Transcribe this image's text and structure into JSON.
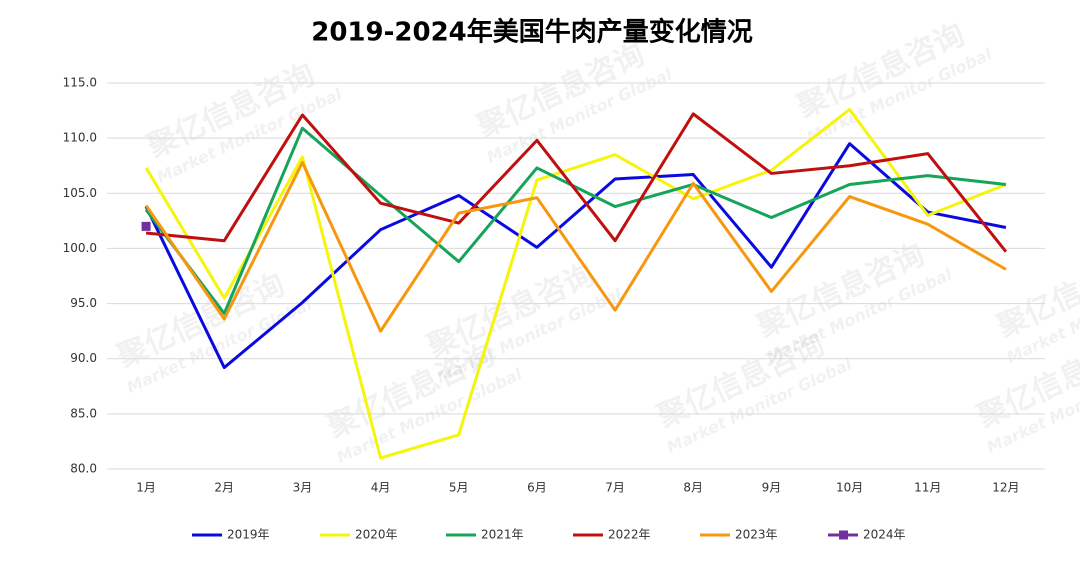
{
  "chart_data": {
    "type": "line",
    "title": "2019-2024年美国牛肉产量变化情况",
    "watermark": "聚亿信息咨询",
    "watermark_subtitle": "Market Monitor Global",
    "categories": [
      "1月",
      "2月",
      "3月",
      "4月",
      "5月",
      "6月",
      "7月",
      "8月",
      "9月",
      "10月",
      "11月",
      "12月"
    ],
    "ylim": [
      80,
      115
    ],
    "yticks": [
      {
        "value": 80,
        "label": "80.0"
      },
      {
        "value": 85,
        "label": "85.0"
      },
      {
        "value": 90,
        "label": "90.0"
      },
      {
        "value": 95,
        "label": "95.0"
      },
      {
        "value": 100,
        "label": "100.0"
      },
      {
        "value": 105,
        "label": "105.0"
      },
      {
        "value": 110,
        "label": "110.0"
      },
      {
        "value": 115,
        "label": "115.0"
      }
    ],
    "grid": true,
    "legend": "bottom",
    "series": [
      {
        "name": "2019年",
        "color": "#0a0ae0",
        "values": [
          103.8,
          89.2,
          95.1,
          101.7,
          104.8,
          100.1,
          106.3,
          106.7,
          98.3,
          109.5,
          103.3,
          101.9
        ]
      },
      {
        "name": "2020年",
        "color": "#f5f50a",
        "values": [
          107.3,
          95.5,
          108.3,
          81.0,
          83.1,
          106.2,
          108.5,
          104.5,
          107.1,
          112.6,
          103.0,
          105.8
        ]
      },
      {
        "name": "2021年",
        "color": "#16a35a",
        "values": [
          103.5,
          94.1,
          110.9,
          104.8,
          98.8,
          107.3,
          103.8,
          105.8,
          102.8,
          105.8,
          106.6,
          105.8
        ]
      },
      {
        "name": "2022年",
        "color": "#c00f0f",
        "values": [
          101.4,
          100.7,
          112.1,
          104.1,
          102.3,
          109.8,
          100.7,
          112.2,
          106.8,
          107.5,
          108.6,
          99.7
        ]
      },
      {
        "name": "2023年",
        "color": "#f7970f",
        "values": [
          103.9,
          93.6,
          107.8,
          92.5,
          103.2,
          104.6,
          94.4,
          105.9,
          96.1,
          104.7,
          102.2,
          98.1
        ]
      },
      {
        "name": "2024年",
        "color": "#7030a0",
        "marker": "square",
        "values": [
          102.0,
          null,
          null,
          null,
          null,
          null,
          null,
          null,
          null,
          null,
          null,
          null
        ]
      }
    ]
  }
}
